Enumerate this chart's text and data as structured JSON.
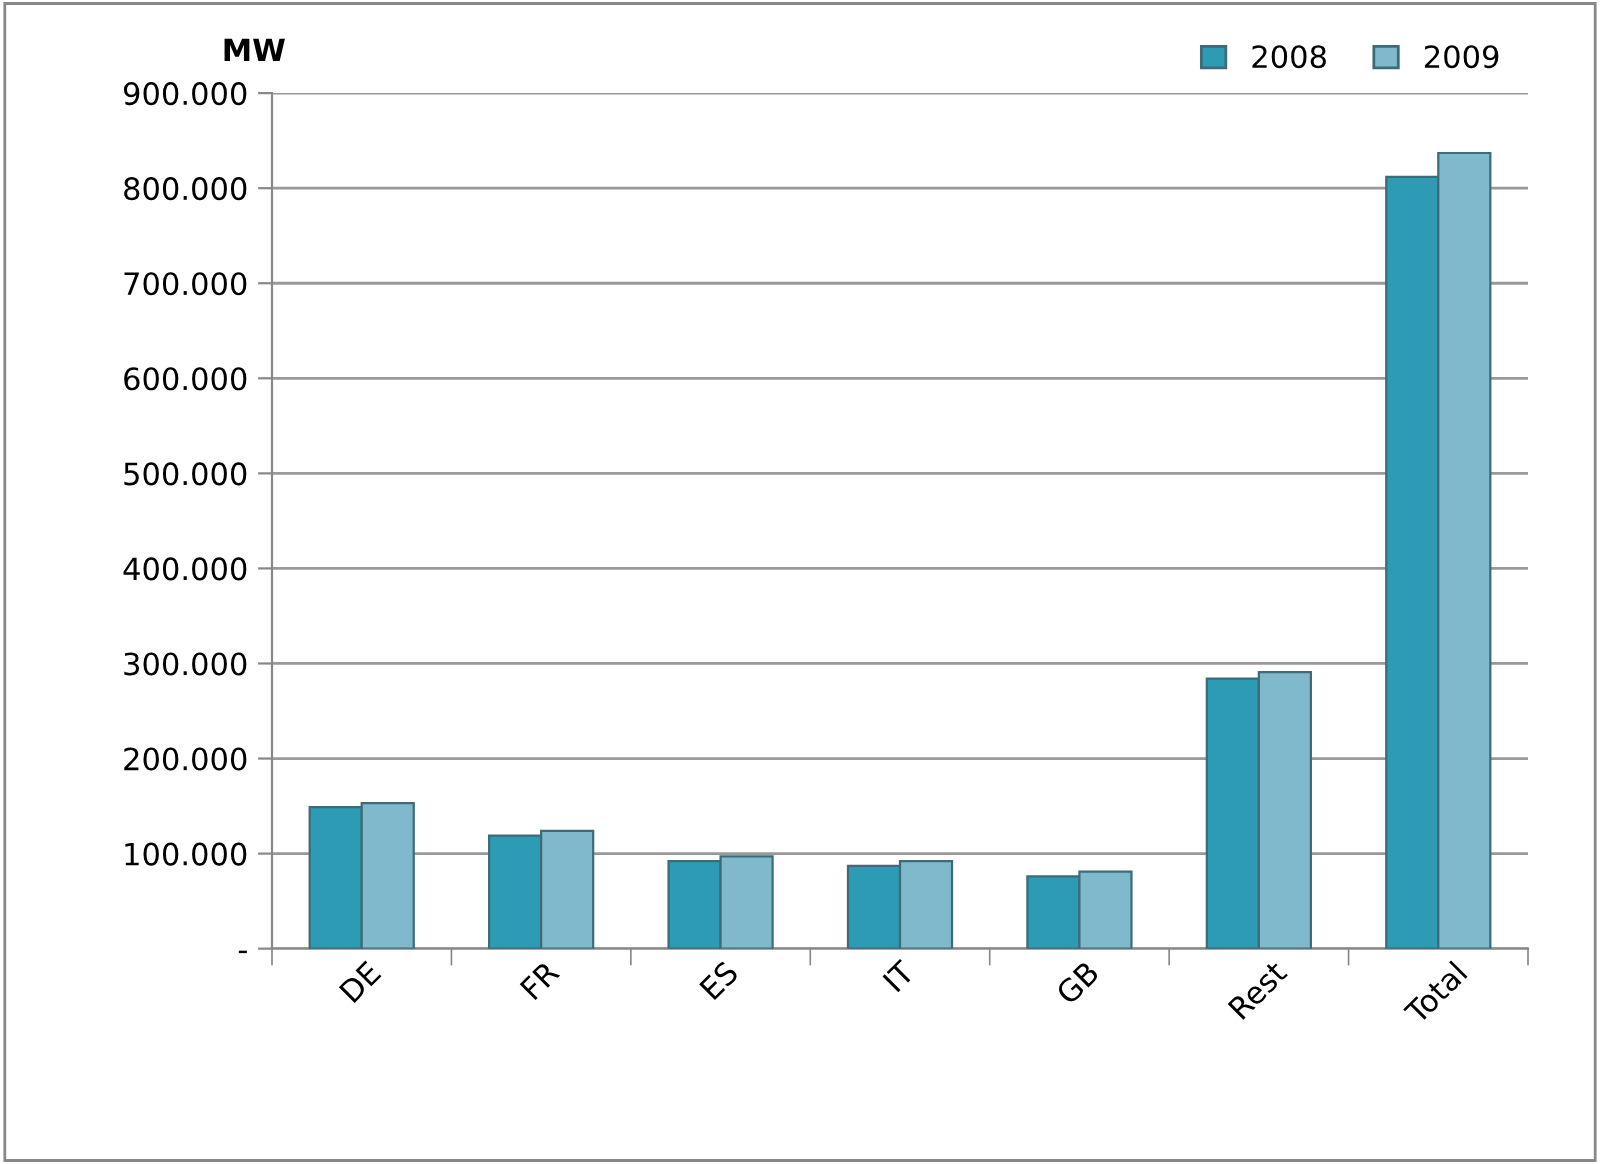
{
  "chart_data": {
    "type": "bar",
    "ylabel": "MW",
    "categories": [
      "DE",
      "FR",
      "ES",
      "IT",
      "GB",
      "Rest",
      "Total"
    ],
    "series": [
      {
        "name": "2008",
        "color": "#2e9bb5",
        "values": [
          149,
          119,
          92,
          87,
          76,
          284,
          812
        ]
      },
      {
        "name": "2009",
        "color": "#80b9cc",
        "values": [
          153,
          124,
          97,
          92,
          81,
          291,
          837
        ]
      }
    ],
    "ylim": [
      0,
      900
    ],
    "yticks": [
      {
        "value": 0,
        "label": "-"
      },
      {
        "value": 100,
        "label": "100.000"
      },
      {
        "value": 200,
        "label": "200.000"
      },
      {
        "value": 300,
        "label": "300.000"
      },
      {
        "value": 400,
        "label": "400.000"
      },
      {
        "value": 500,
        "label": "500.000"
      },
      {
        "value": 600,
        "label": "600.000"
      },
      {
        "value": 700,
        "label": "700.000"
      },
      {
        "value": 800,
        "label": "800.000"
      },
      {
        "value": 900,
        "label": "900.000"
      }
    ],
    "grid": "y",
    "legend": "top right"
  }
}
